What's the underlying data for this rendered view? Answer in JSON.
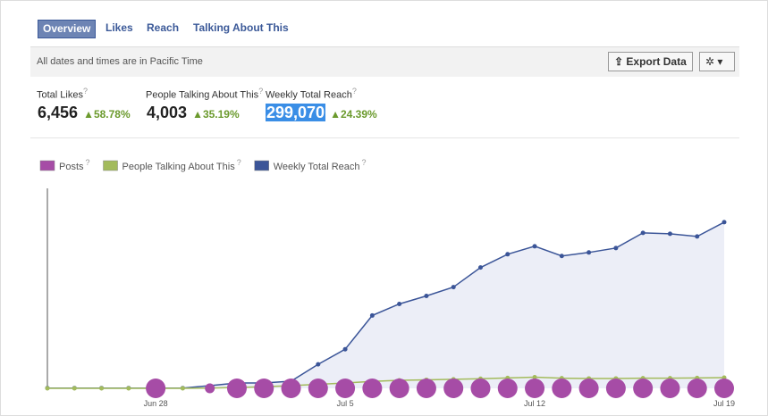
{
  "tabs": [
    "Overview",
    "Likes",
    "Reach",
    "Talking About This"
  ],
  "notice": "All dates and times are in Pacific Time",
  "export_button": "Export Data",
  "help": "?",
  "metrics": [
    {
      "label": "Total Likes",
      "value": "6,456",
      "change": "58.78%"
    },
    {
      "label": "People Talking About This",
      "value": "4,003",
      "change": "35.19%"
    },
    {
      "label": "Weekly Total Reach",
      "value": "299,070",
      "change": "24.39%"
    }
  ],
  "chart_data": {
    "type": "line",
    "categories": [
      null,
      null,
      null,
      null,
      "Jun 28",
      null,
      null,
      null,
      null,
      null,
      null,
      "Jul 5",
      null,
      null,
      null,
      null,
      null,
      null,
      "Jul 12",
      null,
      null,
      null,
      null,
      null,
      null,
      "Jul 19"
    ],
    "ylim": [
      0,
      360000
    ],
    "y2lim": [
      0,
      75000
    ],
    "series": [
      {
        "name": "Posts",
        "color": "#a64ca6",
        "kind": "bubble",
        "values": [
          null,
          null,
          null,
          null,
          2,
          null,
          1,
          2,
          2,
          2,
          2,
          2,
          2,
          2,
          2,
          2,
          2,
          2,
          2,
          2,
          2,
          2,
          2,
          2,
          2,
          2
        ]
      },
      {
        "name": "People Talking About This",
        "color": "#a3bb5c",
        "axis": "y2",
        "values": [
          0,
          0,
          0,
          0,
          0,
          0,
          100,
          300,
          600,
          1000,
          1500,
          2000,
          2600,
          3000,
          3200,
          3400,
          3600,
          3900,
          4200,
          3800,
          3700,
          3700,
          3800,
          3800,
          3900,
          4003
        ]
      },
      {
        "name": "Weekly Total Reach",
        "color": "#3b5598",
        "area": "#eceef7",
        "values": [
          500,
          500,
          500,
          500,
          500,
          500,
          4800,
          9600,
          9600,
          12800,
          43200,
          70400,
          131100,
          151900,
          166300,
          182300,
          217500,
          241400,
          255800,
          238300,
          244600,
          252600,
          279800,
          278200,
          273400,
          299070
        ]
      }
    ]
  }
}
